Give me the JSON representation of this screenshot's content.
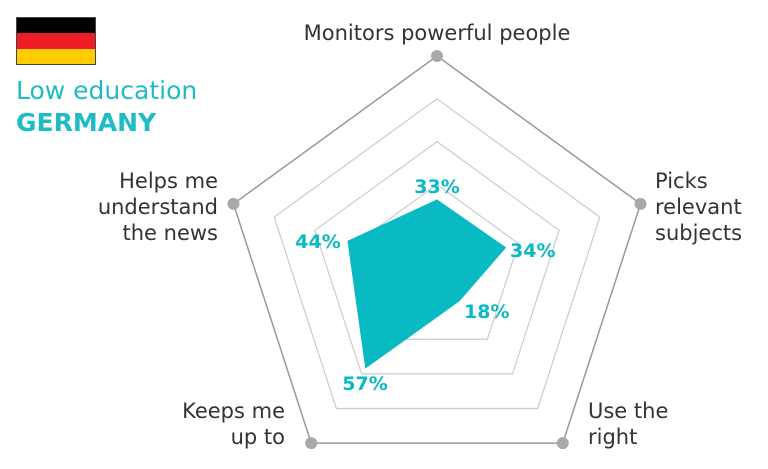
{
  "header": {
    "subtitle": "Low education",
    "title": "GERMANY",
    "flag_colors": [
      "#000000",
      "#ee1c25",
      "#ffcc00"
    ]
  },
  "chart_data": {
    "type": "radar",
    "categories": [
      "Monitors powerful people",
      "Picks relevant subjects",
      "Use the right tone",
      "Keeps me up to date",
      "Helps me understand the news"
    ],
    "values": [
      33,
      34,
      18,
      57,
      44
    ],
    "value_labels": [
      "33%",
      "34%",
      "18%",
      "57%",
      "44%"
    ],
    "range": [
      0,
      100
    ],
    "grid_levels": [
      40,
      60,
      80,
      100
    ],
    "fill_color": "#0abac2",
    "grid_color": "#cccccc",
    "axis_color": "#999999"
  }
}
